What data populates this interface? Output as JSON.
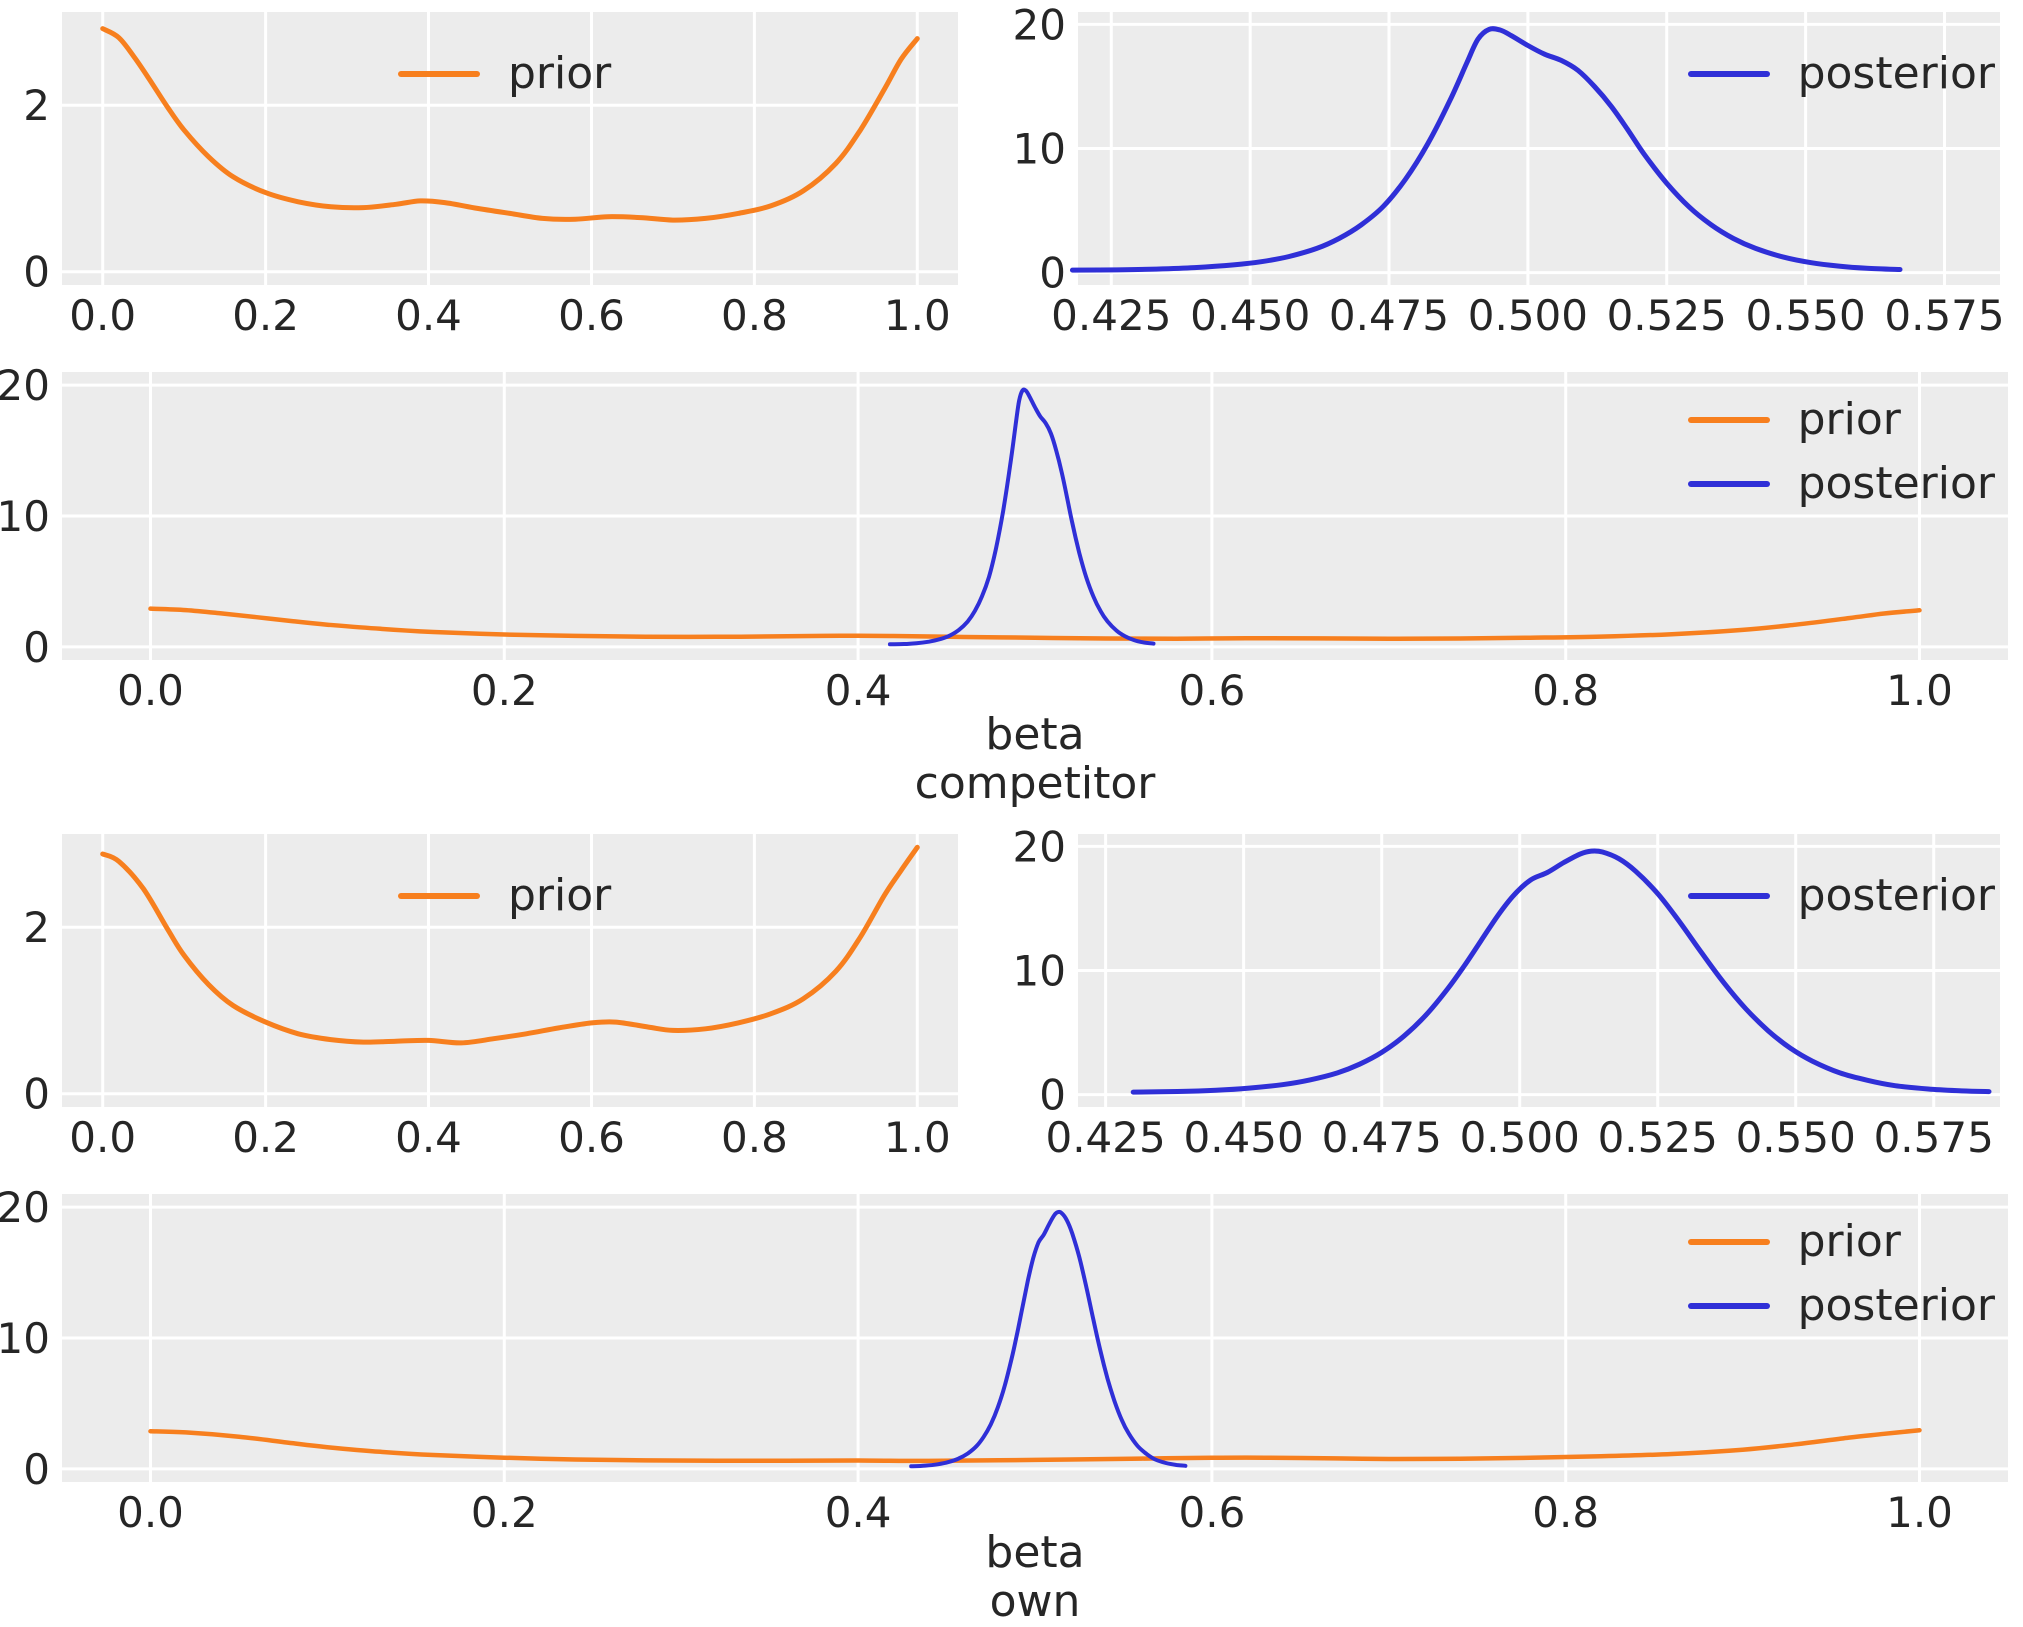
{
  "colors": {
    "prior": "#f77f1e",
    "posterior": "#2f2fd7",
    "plot_bg": "#ececec",
    "grid": "#ffffff",
    "text": "#262626",
    "figure_bg": "#ffffff"
  },
  "sections": [
    {
      "xlabel_line1": "beta",
      "xlabel_line2": "competitor"
    },
    {
      "xlabel_line1": "beta",
      "xlabel_line2": "own"
    }
  ],
  "chart_data": {
    "type": "line",
    "description": "Prior and posterior kernel density estimates for parameters beta competitor and beta own",
    "legend_position": "inside-top",
    "grid": true,
    "distributions": {
      "prior_competitor": [
        [
          0.0,
          2.92
        ],
        [
          0.02,
          2.81
        ],
        [
          0.04,
          2.56
        ],
        [
          0.06,
          2.27
        ],
        [
          0.08,
          1.97
        ],
        [
          0.1,
          1.7
        ],
        [
          0.13,
          1.38
        ],
        [
          0.16,
          1.14
        ],
        [
          0.2,
          0.95
        ],
        [
          0.24,
          0.84
        ],
        [
          0.28,
          0.78
        ],
        [
          0.32,
          0.77
        ],
        [
          0.36,
          0.81
        ],
        [
          0.39,
          0.85
        ],
        [
          0.42,
          0.83
        ],
        [
          0.46,
          0.76
        ],
        [
          0.5,
          0.7
        ],
        [
          0.54,
          0.64
        ],
        [
          0.58,
          0.63
        ],
        [
          0.62,
          0.66
        ],
        [
          0.66,
          0.65
        ],
        [
          0.7,
          0.62
        ],
        [
          0.74,
          0.64
        ],
        [
          0.78,
          0.7
        ],
        [
          0.82,
          0.79
        ],
        [
          0.86,
          0.97
        ],
        [
          0.9,
          1.3
        ],
        [
          0.93,
          1.7
        ],
        [
          0.96,
          2.2
        ],
        [
          0.98,
          2.55
        ],
        [
          1.0,
          2.8
        ]
      ],
      "posterior_competitor": [
        [
          0.418,
          0.2
        ],
        [
          0.426,
          0.22
        ],
        [
          0.433,
          0.28
        ],
        [
          0.44,
          0.4
        ],
        [
          0.447,
          0.62
        ],
        [
          0.452,
          0.88
        ],
        [
          0.457,
          1.3
        ],
        [
          0.462,
          1.95
        ],
        [
          0.466,
          2.75
        ],
        [
          0.47,
          3.85
        ],
        [
          0.474,
          5.35
        ],
        [
          0.478,
          7.55
        ],
        [
          0.482,
          10.4
        ],
        [
          0.486,
          13.9
        ],
        [
          0.489,
          16.9
        ],
        [
          0.491,
          18.8
        ],
        [
          0.493,
          19.6
        ],
        [
          0.495,
          19.55
        ],
        [
          0.497,
          19.1
        ],
        [
          0.5,
          18.3
        ],
        [
          0.503,
          17.6
        ],
        [
          0.506,
          17.1
        ],
        [
          0.509,
          16.3
        ],
        [
          0.512,
          15.0
        ],
        [
          0.515,
          13.4
        ],
        [
          0.518,
          11.5
        ],
        [
          0.521,
          9.5
        ],
        [
          0.525,
          7.2
        ],
        [
          0.529,
          5.3
        ],
        [
          0.533,
          3.85
        ],
        [
          0.537,
          2.75
        ],
        [
          0.541,
          1.95
        ],
        [
          0.546,
          1.25
        ],
        [
          0.551,
          0.8
        ],
        [
          0.556,
          0.52
        ],
        [
          0.561,
          0.35
        ],
        [
          0.567,
          0.25
        ]
      ],
      "prior_own": [
        [
          0.0,
          2.88
        ],
        [
          0.02,
          2.79
        ],
        [
          0.05,
          2.46
        ],
        [
          0.08,
          1.97
        ],
        [
          0.1,
          1.66
        ],
        [
          0.13,
          1.31
        ],
        [
          0.16,
          1.06
        ],
        [
          0.2,
          0.86
        ],
        [
          0.24,
          0.72
        ],
        [
          0.28,
          0.65
        ],
        [
          0.32,
          0.62
        ],
        [
          0.36,
          0.63
        ],
        [
          0.4,
          0.64
        ],
        [
          0.44,
          0.61
        ],
        [
          0.48,
          0.66
        ],
        [
          0.52,
          0.72
        ],
        [
          0.56,
          0.79
        ],
        [
          0.6,
          0.85
        ],
        [
          0.63,
          0.86
        ],
        [
          0.67,
          0.8
        ],
        [
          0.7,
          0.76
        ],
        [
          0.74,
          0.78
        ],
        [
          0.78,
          0.85
        ],
        [
          0.82,
          0.96
        ],
        [
          0.86,
          1.14
        ],
        [
          0.9,
          1.47
        ],
        [
          0.93,
          1.88
        ],
        [
          0.96,
          2.39
        ],
        [
          0.98,
          2.68
        ],
        [
          1.0,
          2.96
        ]
      ],
      "posterior_own": [
        [
          0.43,
          0.2
        ],
        [
          0.438,
          0.25
        ],
        [
          0.445,
          0.35
        ],
        [
          0.451,
          0.52
        ],
        [
          0.457,
          0.8
        ],
        [
          0.462,
          1.18
        ],
        [
          0.467,
          1.75
        ],
        [
          0.471,
          2.45
        ],
        [
          0.475,
          3.4
        ],
        [
          0.479,
          4.7
        ],
        [
          0.483,
          6.4
        ],
        [
          0.487,
          8.55
        ],
        [
          0.49,
          10.4
        ],
        [
          0.493,
          12.4
        ],
        [
          0.496,
          14.4
        ],
        [
          0.499,
          16.1
        ],
        [
          0.502,
          17.3
        ],
        [
          0.505,
          17.9
        ],
        [
          0.508,
          18.7
        ],
        [
          0.511,
          19.4
        ],
        [
          0.513,
          19.62
        ],
        [
          0.515,
          19.55
        ],
        [
          0.518,
          19.0
        ],
        [
          0.521,
          18.0
        ],
        [
          0.525,
          16.2
        ],
        [
          0.529,
          13.9
        ],
        [
          0.533,
          11.4
        ],
        [
          0.537,
          9.0
        ],
        [
          0.541,
          6.9
        ],
        [
          0.545,
          5.15
        ],
        [
          0.549,
          3.75
        ],
        [
          0.553,
          2.7
        ],
        [
          0.558,
          1.75
        ],
        [
          0.563,
          1.15
        ],
        [
          0.568,
          0.72
        ],
        [
          0.574,
          0.45
        ],
        [
          0.58,
          0.3
        ],
        [
          0.585,
          0.24
        ]
      ]
    },
    "panels": [
      {
        "id": "competitor-prior",
        "xlim": [
          -0.05,
          1.05
        ],
        "ylim": [
          -0.16,
          3.12
        ],
        "xticks": [
          {
            "v": 0.0,
            "l": "0.0"
          },
          {
            "v": 0.2,
            "l": "0.2"
          },
          {
            "v": 0.4,
            "l": "0.4"
          },
          {
            "v": 0.6,
            "l": "0.6"
          },
          {
            "v": 0.8,
            "l": "0.8"
          },
          {
            "v": 1.0,
            "l": "1.0"
          }
        ],
        "yticks": [
          {
            "v": 0,
            "l": "0"
          },
          {
            "v": 2,
            "l": "2"
          }
        ],
        "series": [
          {
            "name": "prior",
            "color": "prior",
            "width": 5,
            "data_key": "prior_competitor"
          }
        ],
        "legend": {
          "loc": "upper-center",
          "entries": [
            {
              "label": "prior",
              "color": "prior"
            }
          ]
        }
      },
      {
        "id": "competitor-posterior",
        "xlim": [
          0.419,
          0.585
        ],
        "ylim": [
          -1.0,
          21.0
        ],
        "xticks": [
          {
            "v": 0.425,
            "l": "0.425"
          },
          {
            "v": 0.45,
            "l": "0.450"
          },
          {
            "v": 0.475,
            "l": "0.475"
          },
          {
            "v": 0.5,
            "l": "0.500"
          },
          {
            "v": 0.525,
            "l": "0.525"
          },
          {
            "v": 0.55,
            "l": "0.550"
          },
          {
            "v": 0.575,
            "l": "0.575"
          }
        ],
        "yticks": [
          {
            "v": 0,
            "l": "0"
          },
          {
            "v": 10,
            "l": "10"
          },
          {
            "v": 20,
            "l": "20"
          }
        ],
        "series": [
          {
            "name": "posterior",
            "color": "posterior",
            "width": 5,
            "data_key": "posterior_competitor"
          }
        ],
        "legend": {
          "loc": "upper-right",
          "entries": [
            {
              "label": "posterior",
              "color": "posterior"
            }
          ]
        }
      },
      {
        "id": "competitor-both",
        "xlim": [
          -0.05,
          1.05
        ],
        "ylim": [
          -1.0,
          21.0
        ],
        "xticks": [
          {
            "v": 0.0,
            "l": "0.0"
          },
          {
            "v": 0.2,
            "l": "0.2"
          },
          {
            "v": 0.4,
            "l": "0.4"
          },
          {
            "v": 0.6,
            "l": "0.6"
          },
          {
            "v": 0.8,
            "l": "0.8"
          },
          {
            "v": 1.0,
            "l": "1.0"
          }
        ],
        "yticks": [
          {
            "v": 0,
            "l": "0"
          },
          {
            "v": 10,
            "l": "10"
          },
          {
            "v": 20,
            "l": "20"
          }
        ],
        "series": [
          {
            "name": "prior",
            "color": "prior",
            "width": 4.5,
            "data_key": "prior_competitor"
          },
          {
            "name": "posterior",
            "color": "posterior",
            "width": 4,
            "data_key": "posterior_competitor"
          }
        ],
        "legend": {
          "loc": "upper-right",
          "entries": [
            {
              "label": "prior",
              "color": "prior"
            },
            {
              "label": "posterior",
              "color": "posterior"
            }
          ]
        }
      },
      {
        "id": "own-prior",
        "xlim": [
          -0.05,
          1.05
        ],
        "ylim": [
          -0.16,
          3.12
        ],
        "xticks": [
          {
            "v": 0.0,
            "l": "0.0"
          },
          {
            "v": 0.2,
            "l": "0.2"
          },
          {
            "v": 0.4,
            "l": "0.4"
          },
          {
            "v": 0.6,
            "l": "0.6"
          },
          {
            "v": 0.8,
            "l": "0.8"
          },
          {
            "v": 1.0,
            "l": "1.0"
          }
        ],
        "yticks": [
          {
            "v": 0,
            "l": "0"
          },
          {
            "v": 2,
            "l": "2"
          }
        ],
        "series": [
          {
            "name": "prior",
            "color": "prior",
            "width": 5,
            "data_key": "prior_own"
          }
        ],
        "legend": {
          "loc": "upper-center",
          "entries": [
            {
              "label": "prior",
              "color": "prior"
            }
          ]
        }
      },
      {
        "id": "own-posterior",
        "xlim": [
          0.42,
          0.587
        ],
        "ylim": [
          -1.0,
          21.0
        ],
        "xticks": [
          {
            "v": 0.425,
            "l": "0.425"
          },
          {
            "v": 0.45,
            "l": "0.450"
          },
          {
            "v": 0.475,
            "l": "0.475"
          },
          {
            "v": 0.5,
            "l": "0.500"
          },
          {
            "v": 0.525,
            "l": "0.525"
          },
          {
            "v": 0.55,
            "l": "0.550"
          },
          {
            "v": 0.575,
            "l": "0.575"
          }
        ],
        "yticks": [
          {
            "v": 0,
            "l": "0"
          },
          {
            "v": 10,
            "l": "10"
          },
          {
            "v": 20,
            "l": "20"
          }
        ],
        "series": [
          {
            "name": "posterior",
            "color": "posterior",
            "width": 5,
            "data_key": "posterior_own"
          }
        ],
        "legend": {
          "loc": "upper-right",
          "entries": [
            {
              "label": "posterior",
              "color": "posterior"
            }
          ]
        }
      },
      {
        "id": "own-both",
        "xlim": [
          -0.05,
          1.05
        ],
        "ylim": [
          -1.0,
          21.0
        ],
        "xticks": [
          {
            "v": 0.0,
            "l": "0.0"
          },
          {
            "v": 0.2,
            "l": "0.2"
          },
          {
            "v": 0.4,
            "l": "0.4"
          },
          {
            "v": 0.6,
            "l": "0.6"
          },
          {
            "v": 0.8,
            "l": "0.8"
          },
          {
            "v": 1.0,
            "l": "1.0"
          }
        ],
        "yticks": [
          {
            "v": 0,
            "l": "0"
          },
          {
            "v": 10,
            "l": "10"
          },
          {
            "v": 20,
            "l": "20"
          }
        ],
        "series": [
          {
            "name": "prior",
            "color": "prior",
            "width": 4.5,
            "data_key": "prior_own"
          },
          {
            "name": "posterior",
            "color": "posterior",
            "width": 4,
            "data_key": "posterior_own"
          }
        ],
        "legend": {
          "loc": "upper-right",
          "entries": [
            {
              "label": "prior",
              "color": "prior"
            },
            {
              "label": "posterior",
              "color": "posterior"
            }
          ]
        }
      }
    ]
  }
}
